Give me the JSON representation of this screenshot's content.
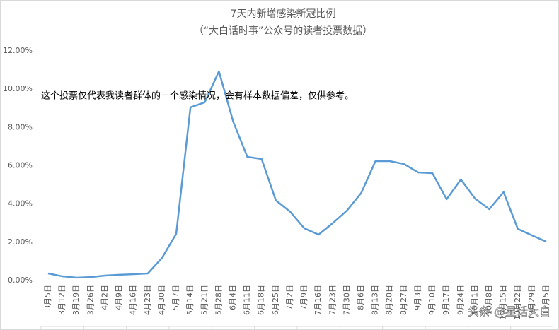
{
  "chart_data": {
    "type": "line",
    "title": "7天内新增感染新冠比例",
    "subtitle": "（“大白话时事”公众号的读者投票数据）",
    "annotation": "这个投票仅代表我读者群体的一个感染情况，会有样本数据偏差，仅供参考。",
    "watermark": "头条 @星话大白",
    "categories": [
      "3月5日",
      "3月12日",
      "3月19日",
      "3月26日",
      "4月2日",
      "4月9日",
      "4月16日",
      "4月23日",
      "4月30日",
      "5月7日",
      "5月14日",
      "5月21日",
      "5月28日",
      "6月4日",
      "6月11日",
      "6月18日",
      "6月25日",
      "7月2日",
      "7月9日",
      "7月16日",
      "7月23日",
      "7月30日",
      "8月6日",
      "8月13日",
      "8月20日",
      "8月27日",
      "9月3日",
      "9月10日",
      "9月17日",
      "9月24日",
      "10月1日",
      "10月8日",
      "10月15日",
      "10月22日",
      "10月29日",
      "11月5日"
    ],
    "series": [
      {
        "name": "7天内新增感染新冠比例",
        "color": "#5b9bd5",
        "values": [
          0.37,
          0.22,
          0.15,
          0.18,
          0.26,
          0.3,
          0.33,
          0.37,
          1.18,
          2.44,
          9.05,
          9.31,
          10.93,
          8.31,
          6.46,
          6.35,
          4.19,
          3.6,
          2.73,
          2.4,
          3.0,
          3.66,
          4.58,
          6.24,
          6.24,
          6.09,
          5.65,
          5.61,
          4.25,
          5.28,
          4.28,
          3.73,
          4.62,
          2.7,
          2.36,
          2.03
        ]
      }
    ],
    "ylim": [
      0,
      12
    ],
    "yticks": [
      {
        "value": 0,
        "label": "0.00%"
      },
      {
        "value": 2,
        "label": "2.00%"
      },
      {
        "value": 4,
        "label": "4.00%"
      },
      {
        "value": 6,
        "label": "6.00%"
      },
      {
        "value": 8,
        "label": "8.00%"
      },
      {
        "value": 10,
        "label": "10.00%"
      },
      {
        "value": 12,
        "label": "12.00%"
      }
    ],
    "grid": false
  }
}
